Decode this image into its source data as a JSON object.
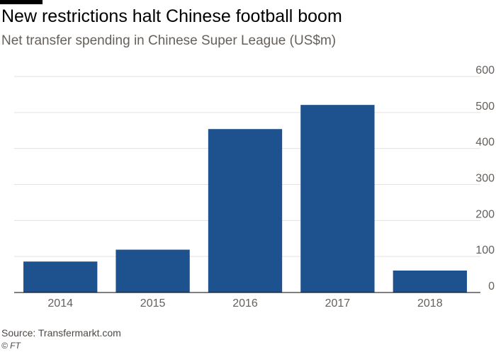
{
  "header": {
    "title": "New restrictions halt Chinese football boom",
    "subtitle": "Net transfer spending in Chinese Super League (US$m)"
  },
  "footer": {
    "source": "Source: Transfermarkt.com",
    "credit": "© FT"
  },
  "colors": {
    "bar": "#1e528f",
    "grid": "#e6e1dc",
    "tick_text": "#66605c",
    "baseline": "#000000"
  },
  "chart_data": {
    "type": "bar",
    "title": "New restrictions halt Chinese football boom",
    "subtitle": "Net transfer spending in Chinese Super League (US$m)",
    "categories": [
      "2014",
      "2015",
      "2016",
      "2017",
      "2018"
    ],
    "values": [
      86,
      119,
      454,
      521,
      61
    ],
    "xlabel": "",
    "ylabel": "",
    "ylim": [
      0,
      600
    ],
    "yticks": [
      0,
      100,
      200,
      300,
      400,
      500,
      600
    ],
    "grid": true,
    "y_axis_side": "right",
    "legend": "none"
  }
}
